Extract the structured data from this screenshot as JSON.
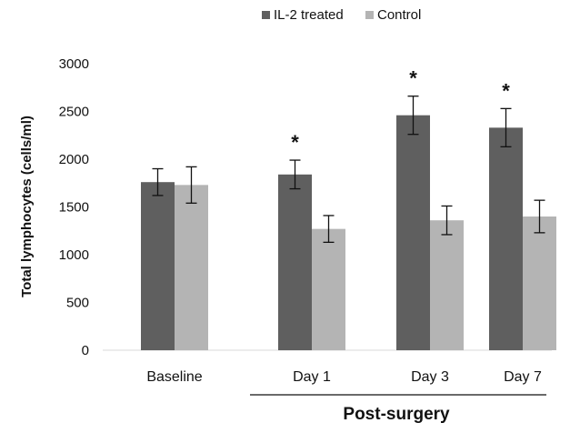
{
  "chart_data": {
    "type": "bar",
    "title": "",
    "ylabel": "Total lymphocytes (cells/ml)",
    "xlabel": "",
    "ylim": [
      0,
      3000
    ],
    "yticks": [
      0,
      500,
      1000,
      1500,
      2000,
      2500,
      3000
    ],
    "grid": false,
    "legend_position": "top",
    "categories": [
      "Baseline",
      "Day 1",
      "Day 3",
      "Day 7"
    ],
    "category_group_label": "Post-surgery",
    "category_group_members": [
      "Day 1",
      "Day 3",
      "Day 7"
    ],
    "series": [
      {
        "name": "IL-2 treated",
        "color": "#5f5f5f",
        "values": [
          1760,
          1840,
          2460,
          2330
        ],
        "error": [
          140,
          150,
          200,
          200
        ],
        "significance": [
          "",
          "*",
          "*",
          "*"
        ]
      },
      {
        "name": "Control",
        "color": "#b4b4b4",
        "values": [
          1730,
          1270,
          1360,
          1400
        ],
        "error": [
          190,
          140,
          150,
          170
        ],
        "significance": [
          "",
          "",
          "",
          ""
        ]
      }
    ]
  }
}
